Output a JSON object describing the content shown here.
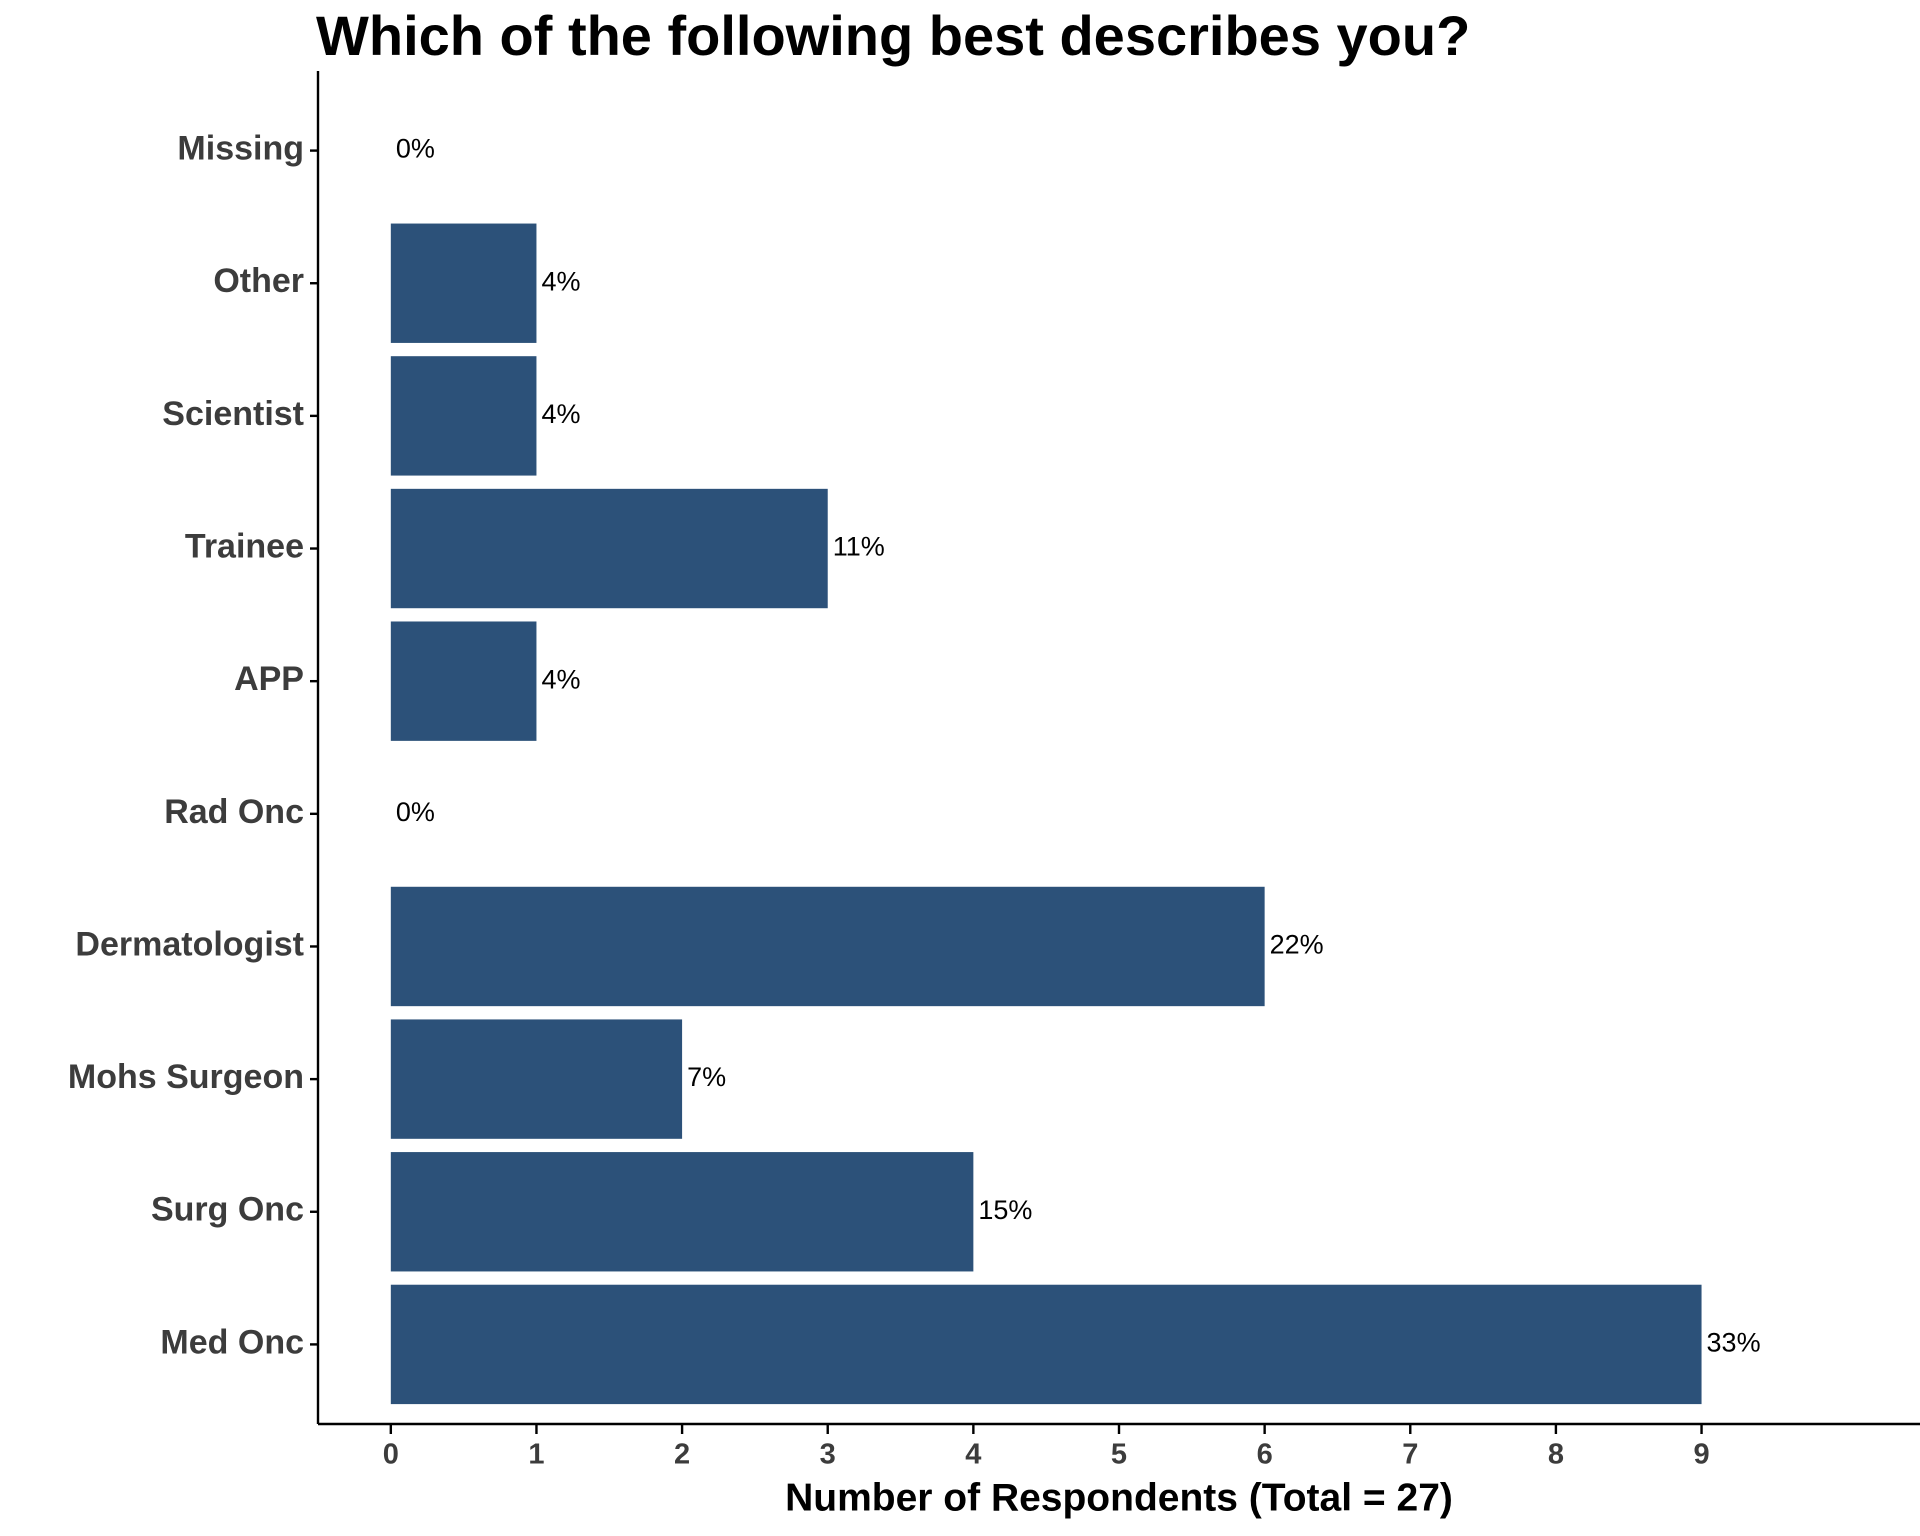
{
  "chart_data": {
    "type": "bar",
    "orientation": "horizontal",
    "title": "Which of the following best describes you?",
    "x_label": "Number of Respondents (Total = 27)",
    "categories": [
      "Missing",
      "Other",
      "Scientist",
      "Trainee",
      "APP",
      "Rad Onc",
      "Dermatologist",
      "Mohs Surgeon",
      "Surg Onc",
      "Med Onc"
    ],
    "values": [
      0,
      1,
      1,
      3,
      1,
      0,
      6,
      2,
      4,
      9
    ],
    "value_labels": [
      "0%",
      "4%",
      "4%",
      "11%",
      "4%",
      "0%",
      "22%",
      "7%",
      "15%",
      "33%"
    ],
    "color": "#2c5179",
    "xlim": [
      -0.5,
      10.5
    ],
    "xticks": [
      0,
      1,
      2,
      3,
      4,
      5,
      6,
      7,
      8,
      9
    ],
    "grid": false
  }
}
